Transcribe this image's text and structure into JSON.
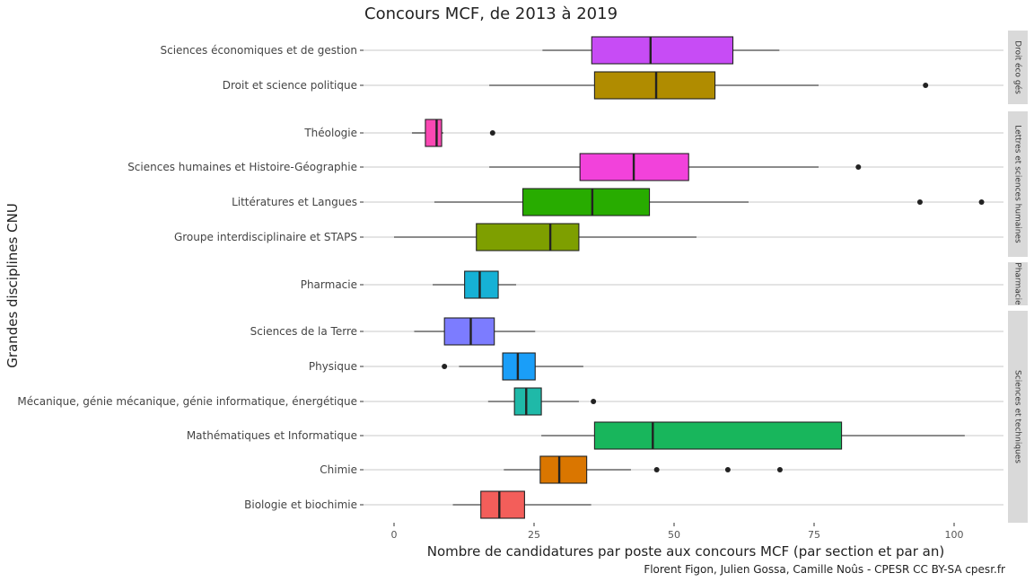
{
  "chart_data": {
    "type": "boxplot",
    "orientation": "horizontal",
    "title": "Concours MCF, de 2013 à 2019",
    "xlabel": "Nombre de candidatures par poste aux concours MCF (par section et par an)",
    "ylabel": "Grandes disciplines CNU",
    "caption": "Florent Figon, Julien Gossa, Camille Noûs - CPESR CC BY-SA cpesr.fr",
    "xlim": [
      -5,
      109
    ],
    "xticks": [
      0,
      25,
      50,
      75,
      100
    ],
    "grid": "horizontal",
    "facets": [
      {
        "name": "Droit éco gés",
        "rows": [
          {
            "label": "Sciences économiques et de gestion",
            "color": "#C74CF5",
            "whisker_low": 26.5,
            "q1": 35.3,
            "median": 45.8,
            "q3": 60.5,
            "whisker_high": 68.8,
            "outliers": []
          },
          {
            "label": "Droit et science politique",
            "color": "#B08C00",
            "whisker_low": 17.0,
            "q1": 35.8,
            "median": 46.8,
            "q3": 57.3,
            "whisker_high": 75.8,
            "outliers": [
              94.9
            ]
          }
        ]
      },
      {
        "name": "Lettres et sciences humaines",
        "rows": [
          {
            "label": "Théologie",
            "color": "#FA48B3",
            "whisker_low": 3.2,
            "q1": 5.6,
            "median": 7.6,
            "q3": 8.5,
            "whisker_high": 8.8,
            "outliers": [
              17.6
            ]
          },
          {
            "label": "Sciences humaines et Histoire-Géographie",
            "color": "#F242DB",
            "whisker_low": 17.0,
            "q1": 33.2,
            "median": 42.8,
            "q3": 52.6,
            "whisker_high": 75.8,
            "outliers": [
              82.9
            ]
          },
          {
            "label": "Littératures et Langues",
            "color": "#28AC00",
            "whisker_low": 7.2,
            "q1": 23.0,
            "median": 35.4,
            "q3": 45.6,
            "whisker_high": 63.3,
            "outliers": [
              93.9,
              104.9
            ]
          },
          {
            "label": "Groupe interdisciplinaire et STAPS",
            "color": "#7E9F00",
            "whisker_low": 0.0,
            "q1": 14.7,
            "median": 27.9,
            "q3": 33.0,
            "whisker_high": 54.0,
            "outliers": []
          }
        ]
      },
      {
        "name": "Pharmacie",
        "rows": [
          {
            "label": "Pharmacie",
            "color": "#16B1D5",
            "whisker_low": 6.9,
            "q1": 12.6,
            "median": 15.3,
            "q3": 18.6,
            "whisker_high": 21.8,
            "outliers": []
          }
        ]
      },
      {
        "name": "Sciences et techniques",
        "rows": [
          {
            "label": "Sciences de la Terre",
            "color": "#7C7CFF",
            "whisker_low": 3.6,
            "q1": 9.0,
            "median": 13.7,
            "q3": 17.9,
            "whisker_high": 25.2,
            "outliers": []
          },
          {
            "label": "Physique",
            "color": "#1A9EF8",
            "whisker_low": 11.6,
            "q1": 19.4,
            "median": 22.1,
            "q3": 25.2,
            "whisker_high": 33.8,
            "outliers": [
              9.0
            ]
          },
          {
            "label": "Mécanique, génie mécanique, génie informatique, énergétique",
            "color": "#1FB9A8",
            "whisker_low": 16.8,
            "q1": 21.5,
            "median": 23.6,
            "q3": 26.3,
            "whisker_high": 33.0,
            "outliers": [
              35.6
            ]
          },
          {
            "label": "Mathématiques et Informatique",
            "color": "#18B65C",
            "whisker_low": 26.3,
            "q1": 35.8,
            "median": 46.2,
            "q3": 79.9,
            "whisker_high": 101.9,
            "outliers": []
          },
          {
            "label": "Chimie",
            "color": "#DA7600",
            "whisker_low": 19.6,
            "q1": 26.1,
            "median": 29.5,
            "q3": 34.4,
            "whisker_high": 42.3,
            "outliers": [
              46.9,
              59.6,
              68.9
            ]
          },
          {
            "label": "Biologie et biochimie",
            "color": "#F35E5A",
            "whisker_low": 10.5,
            "q1": 15.5,
            "median": 18.8,
            "q3": 23.3,
            "whisker_high": 35.2,
            "outliers": []
          }
        ]
      }
    ]
  }
}
